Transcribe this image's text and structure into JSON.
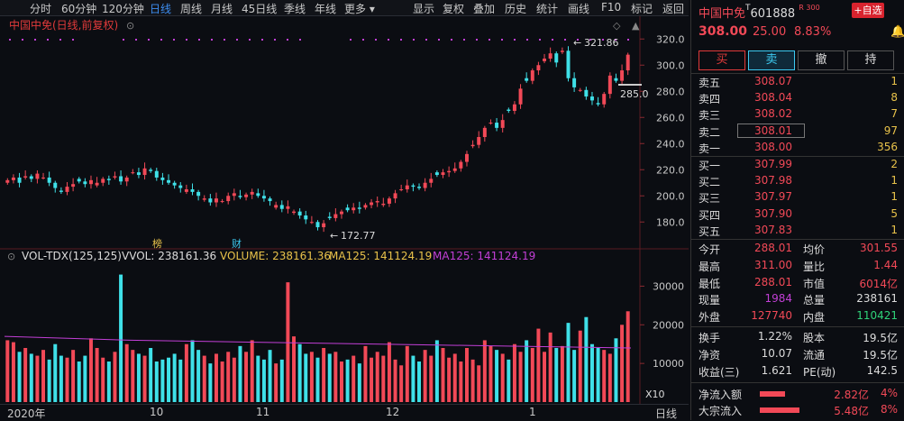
{
  "toolbar": {
    "left_items": [
      "分时",
      "60分钟",
      "120分钟",
      "日线",
      "周线",
      "月线",
      "45日线",
      "季线",
      "年线",
      "更多"
    ],
    "active": "日线",
    "right_items": [
      "显示",
      "复权",
      "叠加",
      "历史",
      "统计",
      "画线",
      "F10",
      "标记",
      "返回"
    ]
  },
  "chart": {
    "title": "中国中免(日线,前复权)",
    "y_ticks": [
      "320.0",
      "300.0",
      "280.0",
      "260.0",
      "240.0",
      "220.0",
      "200.0",
      "180.0"
    ],
    "high_label": "321.86",
    "low_label": "172.77",
    "right_label": "285.0",
    "tag1": "榜",
    "tag2": "财",
    "vol_header": {
      "name": "VOL-TDX(125,125)",
      "vvol": "VVOL: 238161.36",
      "volume": "VOLUME: 238161.36",
      "ma1": "MA125: 141124.19",
      "ma2": "MA125: 141124.19"
    },
    "vol_ticks": [
      "30000",
      "20000",
      "10000"
    ],
    "vol_unit": "X10",
    "x_labels": [
      "2020年",
      "10",
      "11",
      "12",
      "1"
    ],
    "period_label": "日线"
  },
  "chart_data": {
    "type": "candlestick",
    "price_ylim": [
      165,
      325
    ],
    "volume_ylim": [
      0,
      35000
    ],
    "close_approx": [
      212,
      214,
      210,
      215,
      213,
      217,
      214,
      210,
      206,
      203,
      207,
      209,
      211,
      209,
      212,
      210,
      213,
      212,
      215,
      211,
      214,
      218,
      216,
      221,
      219,
      214,
      212,
      210,
      208,
      206,
      205,
      203,
      200,
      198,
      195,
      198,
      196,
      200,
      202,
      199,
      201,
      203,
      200,
      198,
      196,
      193,
      190,
      192,
      188,
      185,
      182,
      180,
      176,
      179,
      183,
      186,
      188,
      189,
      191,
      190,
      193,
      195,
      196,
      194,
      198,
      202,
      205,
      208,
      207,
      206,
      210,
      213,
      216,
      218,
      219,
      221,
      226,
      232,
      239,
      245,
      252,
      256,
      252,
      258,
      265,
      270,
      282,
      288,
      296,
      300,
      305,
      309,
      302,
      311,
      290,
      283,
      281,
      276,
      273,
      270,
      278,
      292,
      288,
      296,
      308
    ],
    "volume_approx": [
      16000,
      15500,
      13000,
      14000,
      12500,
      12000,
      13500,
      11000,
      15000,
      12000,
      11500,
      13500,
      10500,
      12000,
      16500,
      14000,
      11500,
      10500,
      13000,
      33000,
      15000,
      13500,
      12500,
      12000,
      14000,
      10500,
      11000,
      11500,
      12500,
      11000,
      15000,
      16000,
      13500,
      12000,
      10000,
      12500,
      10500,
      13000,
      11500,
      14500,
      13000,
      16000,
      12000,
      11000,
      13500,
      10000,
      11000,
      31000,
      17000,
      15000,
      12500,
      13000,
      11500,
      14000,
      12500,
      13000,
      10500,
      11000,
      12000,
      10000,
      14500,
      11500,
      13000,
      12000,
      15500,
      11000,
      9500,
      14500,
      12000,
      10500,
      13500,
      12000,
      16000,
      14000,
      11500,
      12500,
      10500,
      14000,
      11000,
      9500,
      16000,
      14500,
      13500,
      12500,
      11000,
      15000,
      13000,
      16000,
      14000,
      19000,
      13000,
      18000,
      14000,
      14500,
      20500,
      13500,
      18500,
      22000,
      15000,
      14000,
      13500,
      12500,
      16500,
      20000,
      23500
    ],
    "ma_line_approx": [
      17000,
      16000,
      15500,
      15000,
      14500,
      14000
    ],
    "title": "中国中免(日线,前复权)"
  },
  "panel": {
    "name": "中国中免",
    "code": "601888",
    "badge": "R 300",
    "add_button": "+自选",
    "price": "308.00",
    "change": "25.00",
    "change_pct": "8.83%",
    "buttons": [
      "买",
      "卖",
      "撤",
      "持"
    ],
    "asks": [
      {
        "label": "卖五",
        "price": "308.07",
        "vol": "1"
      },
      {
        "label": "卖四",
        "price": "308.04",
        "vol": "8"
      },
      {
        "label": "卖三",
        "price": "308.02",
        "vol": "7"
      },
      {
        "label": "卖二",
        "price": "308.01",
        "vol": "97"
      },
      {
        "label": "卖一",
        "price": "308.00",
        "vol": "356"
      }
    ],
    "bids": [
      {
        "label": "买一",
        "price": "307.99",
        "vol": "2"
      },
      {
        "label": "买二",
        "price": "307.98",
        "vol": "1"
      },
      {
        "label": "买三",
        "price": "307.97",
        "vol": "1"
      },
      {
        "label": "买四",
        "price": "307.90",
        "vol": "5"
      },
      {
        "label": "买五",
        "price": "307.83",
        "vol": "1"
      }
    ],
    "stats1": [
      {
        "l": "今开",
        "v": "288.01",
        "l2": "均价",
        "v2": "301.55"
      },
      {
        "l": "最高",
        "v": "311.00",
        "l2": "量比",
        "v2": "1.44"
      },
      {
        "l": "最低",
        "v": "288.01",
        "l2": "市值",
        "v2": "6014亿"
      },
      {
        "l": "现量",
        "v": "1984",
        "l2": "总量",
        "v2": "238161"
      },
      {
        "l": "外盘",
        "v": "127740",
        "l2": "内盘",
        "v2": "110421"
      }
    ],
    "stats2": [
      {
        "l": "换手",
        "v": "1.22%",
        "l2": "股本",
        "v2": "19.5亿"
      },
      {
        "l": "净资",
        "v": "10.07",
        "l2": "流通",
        "v2": "19.5亿"
      },
      {
        "l": "收益(三)",
        "v": "1.621",
        "l2": "PE(动)",
        "v2": "142.5"
      }
    ],
    "flows": [
      {
        "l": "净流入额",
        "v": "2.82亿",
        "p": "4%"
      },
      {
        "l": "大宗流入",
        "v": "5.48亿",
        "p": "8%"
      }
    ]
  }
}
